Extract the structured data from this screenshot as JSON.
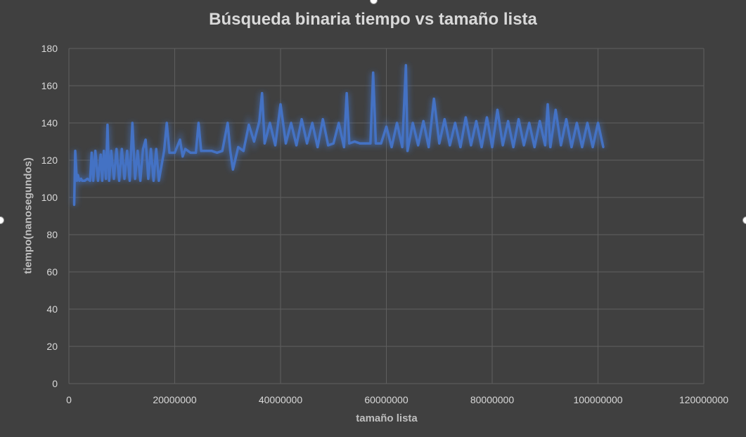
{
  "chart_data": {
    "type": "line",
    "title": "Búsqueda binaria tiempo vs tamaño lista",
    "xlabel": "tamaño lista",
    "ylabel": "tiempo(nanosegundos)",
    "xlim": [
      0,
      120000000
    ],
    "ylim": [
      0,
      180
    ],
    "x_ticks": [
      "0",
      "20000000",
      "40000000",
      "60000000",
      "80000000",
      "100000000",
      "120000000"
    ],
    "y_ticks": [
      "0",
      "20",
      "40",
      "60",
      "80",
      "100",
      "120",
      "140",
      "160",
      "180"
    ],
    "grid": true,
    "legend": "none",
    "series_color": "#4472c4",
    "series": [
      {
        "x": [
          1000000,
          1200000,
          1500000,
          1700000,
          2000000,
          2300000,
          2500000,
          3000000,
          3500000,
          4000000,
          4300000,
          4600000,
          5000000,
          5500000,
          6000000,
          6300000,
          6600000,
          7000000,
          7300000,
          7600000,
          8000000,
          8500000,
          9000000,
          9500000,
          10000000,
          10500000,
          11000000,
          11500000,
          12000000,
          12500000,
          13000000,
          13500000,
          14000000,
          14500000,
          15000000,
          15500000,
          16000000,
          16500000,
          17000000,
          18000000,
          18500000,
          19000000,
          20000000,
          21000000,
          21500000,
          22000000,
          23000000,
          24000000,
          24500000,
          25000000,
          26000000,
          27000000,
          28000000,
          29000000,
          30000000,
          30500000,
          31000000,
          32000000,
          33000000,
          34000000,
          35000000,
          36000000,
          36500000,
          37000000,
          38000000,
          39000000,
          40000000,
          41000000,
          42000000,
          43000000,
          44000000,
          45000000,
          46000000,
          47000000,
          48000000,
          49000000,
          50000000,
          51000000,
          52000000,
          52500000,
          53000000,
          54000000,
          55000000,
          56000000,
          57000000,
          57500000,
          58000000,
          59000000,
          60000000,
          61000000,
          62000000,
          63000000,
          63700000,
          64000000,
          65000000,
          66000000,
          67000000,
          68000000,
          69000000,
          70000000,
          71000000,
          72000000,
          73000000,
          74000000,
          75000000,
          76000000,
          77000000,
          78000000,
          79000000,
          80000000,
          81000000,
          82000000,
          83000000,
          84000000,
          85000000,
          86000000,
          87000000,
          88000000,
          89000000,
          90000000,
          90500000,
          91000000,
          92000000,
          93000000,
          94000000,
          95000000,
          96000000,
          97000000,
          98000000,
          99000000,
          100000000,
          101000000
        ],
        "y": [
          96,
          125,
          109,
          112,
          109,
          110,
          109,
          109,
          110,
          109,
          124,
          109,
          125,
          109,
          123,
          109,
          125,
          110,
          139,
          109,
          125,
          110,
          126,
          109,
          126,
          110,
          125,
          109,
          140,
          110,
          125,
          109,
          126,
          131,
          110,
          126,
          109,
          126,
          109,
          125,
          140,
          124,
          124,
          131,
          122,
          126,
          124,
          124,
          140,
          125,
          125,
          125,
          124,
          125,
          140,
          125,
          115,
          127,
          125,
          139,
          130,
          141,
          156,
          129,
          140,
          128,
          150,
          129,
          140,
          128,
          142,
          129,
          140,
          127,
          142,
          128,
          129,
          140,
          127,
          156,
          129,
          130,
          129,
          129,
          129,
          167,
          129,
          129,
          138,
          127,
          140,
          127,
          171,
          125,
          140,
          128,
          141,
          127,
          153,
          129,
          142,
          128,
          140,
          127,
          143,
          128,
          141,
          127,
          143,
          127,
          147,
          128,
          141,
          127,
          142,
          128,
          140,
          127,
          141,
          128,
          150,
          127,
          147,
          128,
          142,
          127,
          140,
          127,
          140,
          127,
          140,
          127
        ]
      }
    ]
  }
}
